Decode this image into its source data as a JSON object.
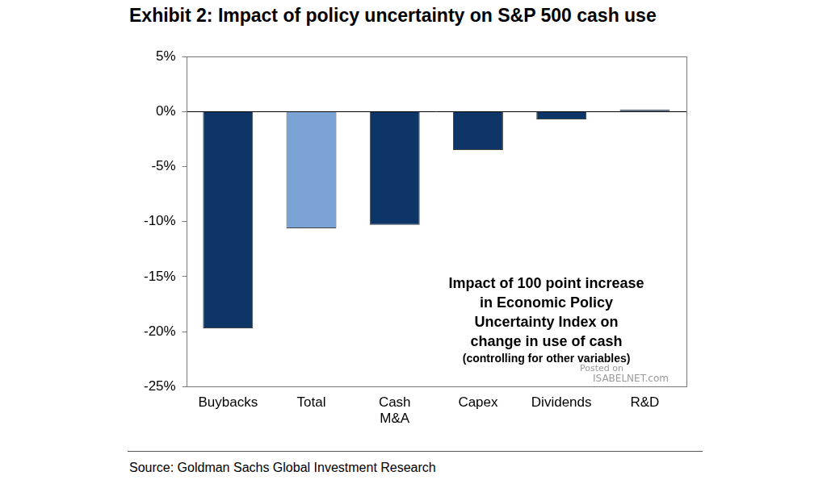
{
  "chart_data": {
    "type": "bar",
    "title": "Exhibit 2: Impact of policy uncertainty on S&P 500 cash use",
    "categories": [
      "Buybacks",
      "Total",
      [
        "Cash",
        "M&A"
      ],
      "Capex",
      "Dividends",
      "R&D"
    ],
    "values": [
      -19.7,
      -10.6,
      -10.3,
      -3.5,
      -0.7,
      0.2
    ],
    "colors": [
      "#0d3566",
      "#7ba3d6",
      "#0d3566",
      "#0d3566",
      "#0d3566",
      "#0d3566"
    ],
    "ylim": [
      -25,
      5
    ],
    "yticks": [
      {
        "value": -25,
        "label": "-25%"
      },
      {
        "value": -20,
        "label": "-20%"
      },
      {
        "value": -15,
        "label": "-15%"
      },
      {
        "value": -10,
        "label": "-10%"
      },
      {
        "value": -5,
        "label": "-5%"
      },
      {
        "value": 0,
        "label": "0%"
      },
      {
        "value": 5,
        "label": "5%"
      }
    ],
    "grid": false,
    "annotation": [
      "Impact of 100 point increase",
      "in Economic Policy",
      "Uncertainty Index on",
      "change in use of cash"
    ],
    "annotation_note": "(controlling for other variables)",
    "watermark": [
      "Posted on",
      "ISABELNET.com"
    ],
    "source": "Source: Goldman Sachs Global Investment Research"
  }
}
